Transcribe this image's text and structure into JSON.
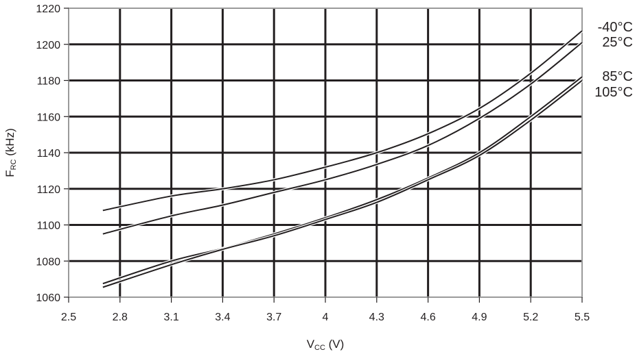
{
  "chart_data": {
    "type": "line",
    "title": "",
    "xlabel": {
      "main": "V",
      "sub": "CC",
      "unit": " (V)"
    },
    "ylabel": {
      "main": "F",
      "sub": "RC",
      "unit": " (kHz)"
    },
    "xlim": [
      2.5,
      5.5
    ],
    "ylim": [
      1060,
      1220
    ],
    "xticks": [
      "2.5",
      "2.8",
      "3.1",
      "3.4",
      "3.7",
      "4",
      "4.3",
      "4.6",
      "4.9",
      "5.2",
      "5.5"
    ],
    "yticks": [
      "1060",
      "1080",
      "1100",
      "1120",
      "1140",
      "1160",
      "1180",
      "1200",
      "1220"
    ],
    "grid": true,
    "legend_placement": "right-end-labels",
    "line_color": "#231f20",
    "x": [
      2.7,
      3.1,
      3.4,
      3.7,
      4.0,
      4.3,
      4.6,
      4.9,
      5.2,
      5.5
    ],
    "series": [
      {
        "name": "-40°C",
        "values": [
          1108,
          1116,
          1120,
          1125,
          1132,
          1140,
          1150.5,
          1164.5,
          1184,
          1207.5
        ]
      },
      {
        "name": "25°C",
        "values": [
          1095,
          1105,
          1111,
          1118,
          1125,
          1133.5,
          1144,
          1159,
          1178,
          1201
        ]
      },
      {
        "name": "85°C",
        "values": [
          1067.5,
          1080,
          1087,
          1095,
          1104,
          1114,
          1126,
          1140,
          1160,
          1182
        ]
      },
      {
        "name": "105°C",
        "values": [
          1065.5,
          1078,
          1086.5,
          1094,
          1103,
          1112.5,
          1125,
          1138.5,
          1158,
          1180
        ]
      }
    ]
  }
}
